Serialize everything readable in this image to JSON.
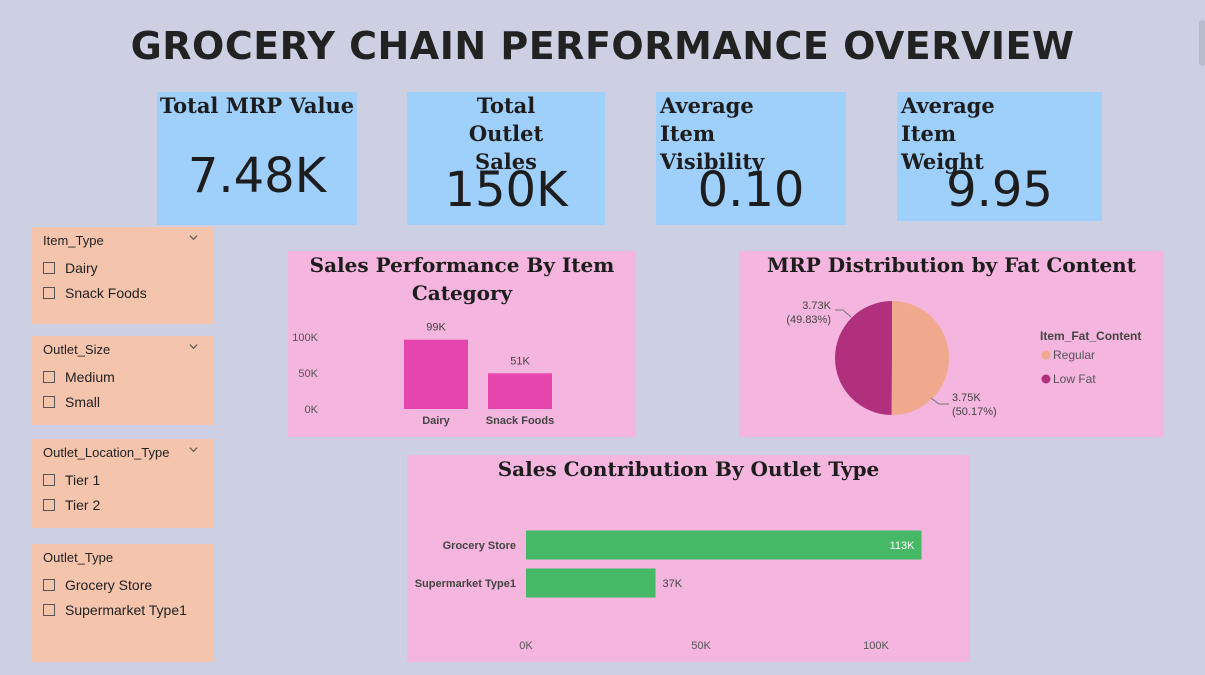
{
  "title": "GROCERY CHAIN PERFORMANCE OVERVIEW",
  "kpis": [
    {
      "label": "Total MRP Value",
      "value": "7.48K"
    },
    {
      "label": "Total Outlet Sales",
      "value": "150K"
    },
    {
      "label": "Average Item Visibility",
      "value": "0.10"
    },
    {
      "label": "Average Item Weight",
      "value": "9.95"
    }
  ],
  "slicers": [
    {
      "title": "Item_Type",
      "options": [
        "Dairy",
        "Snack Foods"
      ]
    },
    {
      "title": "Outlet_Size",
      "options": [
        "Medium",
        "Small"
      ]
    },
    {
      "title": "Outlet_Location_Type",
      "options": [
        "Tier 1",
        "Tier 2"
      ]
    },
    {
      "title": "Outlet_Type",
      "options": [
        "Grocery Store",
        "Supermarket Type1"
      ]
    }
  ],
  "colors": {
    "background": "#cdd0e3",
    "kpi_card": "#9fcffb",
    "slicer_card": "#f4c4ad",
    "chart_panel": "#f4b5de",
    "bar_pink": "#e645ad",
    "pie_regular": "#f0a98c",
    "pie_lowfat": "#b0307d",
    "bar_green": "#45b965"
  },
  "chart_data": [
    {
      "type": "bar",
      "title": "Sales Performance By Item Category",
      "categories": [
        "Dairy",
        "Snack Foods"
      ],
      "values": [
        99,
        51
      ],
      "data_labels": [
        "99K",
        "51K"
      ],
      "y_ticks": [
        "0K",
        "50K",
        "100K"
      ],
      "ylim": [
        0,
        100
      ],
      "grid": false
    },
    {
      "type": "pie",
      "title": "MRP Distribution by Fat Content",
      "legend_title": "Item_Fat_Content",
      "legend_position": "right",
      "slices": [
        {
          "name": "Regular",
          "value": 3.75,
          "label": "3.75K",
          "pct": "(50.17%)",
          "percent": 50.17
        },
        {
          "name": "Low Fat",
          "value": 3.73,
          "label": "3.73K",
          "pct": "(49.83%)",
          "percent": 49.83
        }
      ]
    },
    {
      "type": "bar",
      "orientation": "horizontal",
      "title": "Sales Contribution By Outlet Type",
      "categories": [
        "Grocery Store",
        "Supermarket Type1"
      ],
      "values": [
        113,
        37
      ],
      "data_labels": [
        "113K",
        "37K"
      ],
      "x_ticks": [
        "0K",
        "50K",
        "100K"
      ],
      "xlim": [
        0,
        100
      ],
      "grid": false
    }
  ]
}
